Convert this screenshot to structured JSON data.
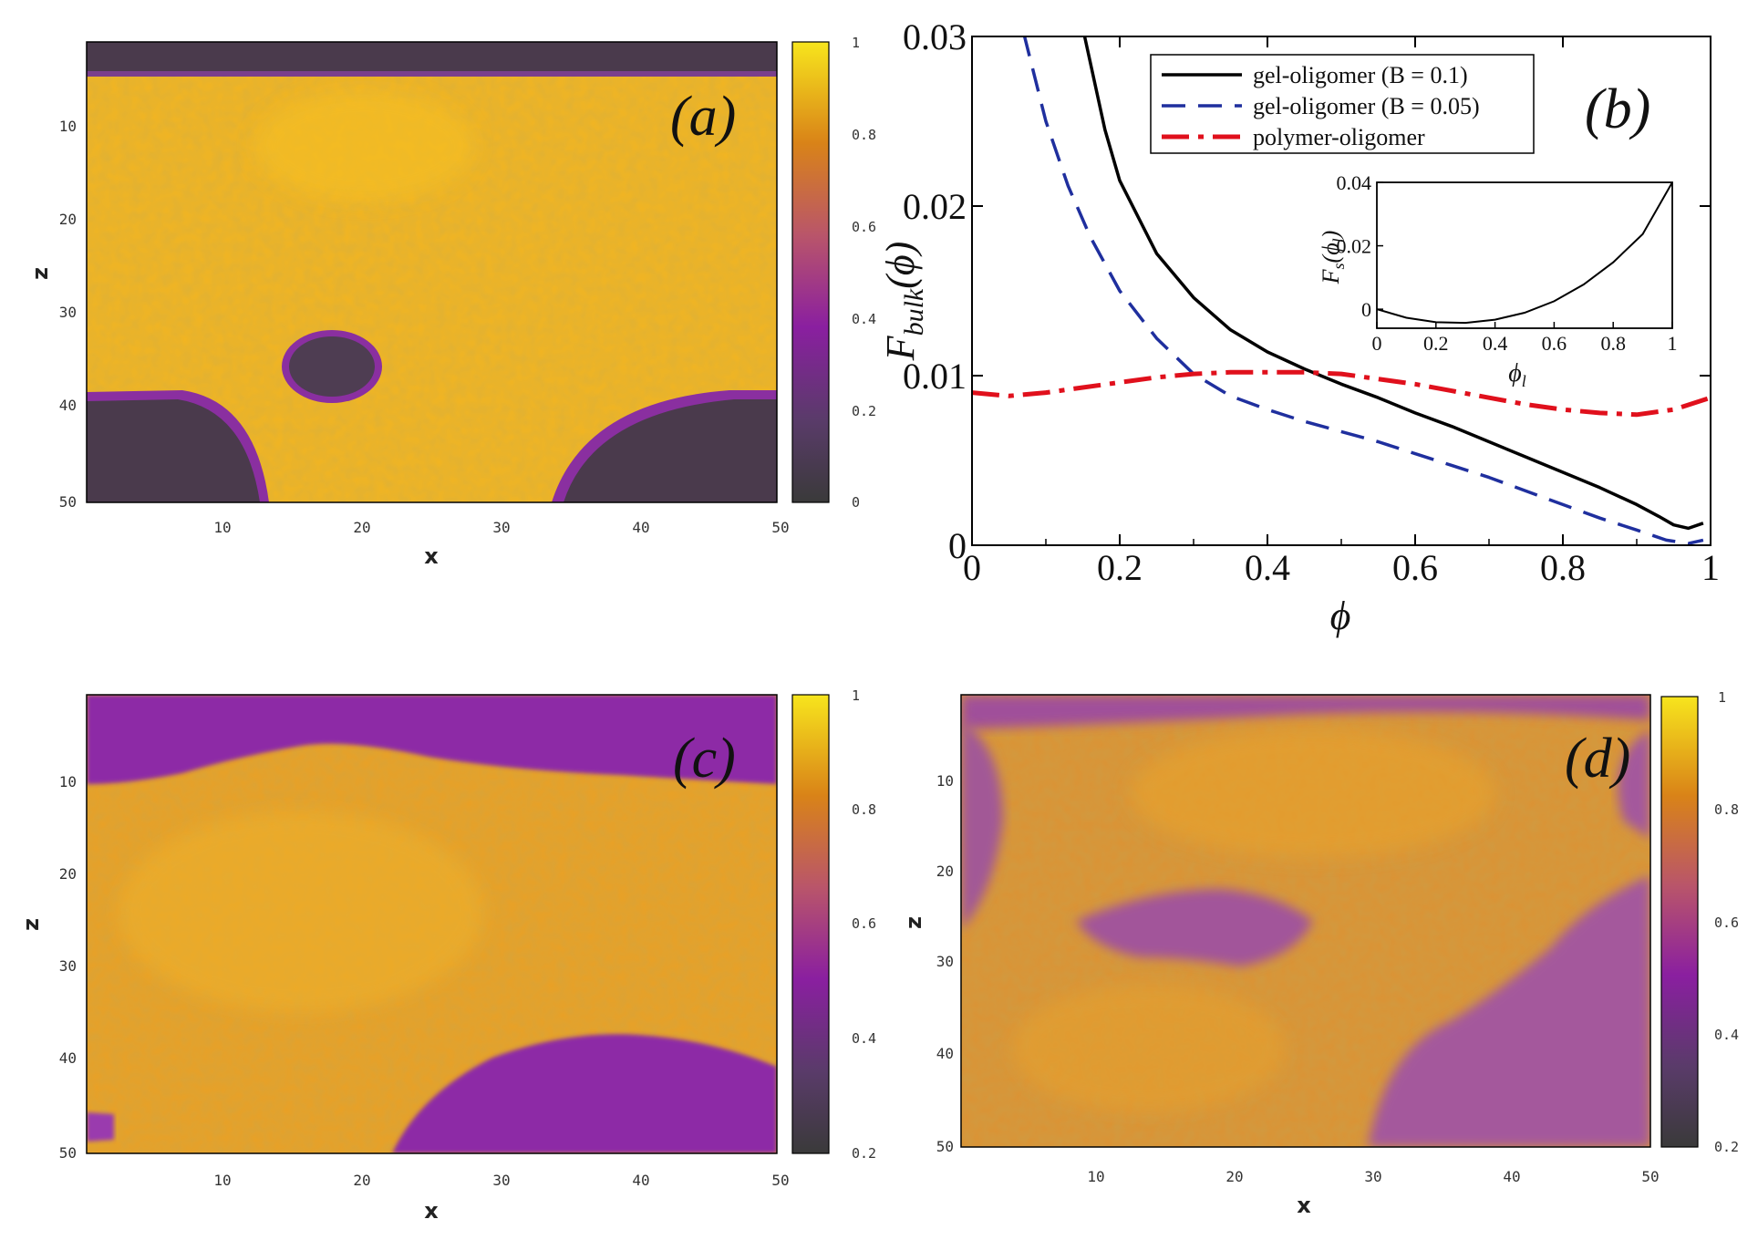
{
  "figure": {
    "panels": [
      {
        "id": "a",
        "label": "(a)",
        "xlabel": "x",
        "ylabel": "z",
        "xticks": [
          "10",
          "20",
          "30",
          "40",
          "50"
        ],
        "yticks": [
          "10",
          "20",
          "30",
          "40",
          "50"
        ],
        "colorbar": {
          "min": 0,
          "max": 1,
          "ticks": [
            "1",
            "0.8",
            "0.6",
            "0.4",
            "0.2",
            "0"
          ]
        }
      },
      {
        "id": "c",
        "label": "(c)",
        "xlabel": "x",
        "ylabel": "z",
        "xticks": [
          "10",
          "20",
          "30",
          "40",
          "50"
        ],
        "yticks": [
          "10",
          "20",
          "30",
          "40",
          "50"
        ],
        "colorbar": {
          "min": 0.2,
          "max": 1,
          "ticks": [
            "1",
            "0.8",
            "0.6",
            "0.4",
            "0.2"
          ]
        }
      },
      {
        "id": "d",
        "label": "(d)",
        "xlabel": "x",
        "ylabel": "z",
        "xticks": [
          "10",
          "20",
          "30",
          "40",
          "50"
        ],
        "yticks": [
          "10",
          "20",
          "30",
          "40",
          "50"
        ],
        "colorbar": {
          "min": 0.2,
          "max": 1,
          "ticks": [
            "1",
            "0.8",
            "0.6",
            "0.4",
            "0.2"
          ]
        }
      }
    ]
  },
  "chart_data": [
    {
      "type": "heatmap",
      "panel": "(a)",
      "xlabel": "x",
      "ylabel": "z",
      "xlim": [
        0,
        50
      ],
      "ylim": [
        50,
        0
      ],
      "colorbar_range": [
        0,
        1
      ],
      "description_values": {
        "film_fraction_typical": 0.9,
        "depleted_regions": 0.05
      }
    },
    {
      "type": "line",
      "panel": "(b)",
      "title": "",
      "xlabel": "ϕ",
      "ylabel": "F_bulk(ϕ)",
      "xlim": [
        0,
        1
      ],
      "ylim": [
        0,
        0.03
      ],
      "xticks": [
        "0",
        "0.2",
        "0.4",
        "0.6",
        "0.8",
        "1"
      ],
      "yticks": [
        "0",
        "0.01",
        "0.02",
        "0.03"
      ],
      "legend": {
        "placement": "top-right"
      },
      "series": [
        {
          "name": "gel-oligomer (B = 0.1)",
          "style": "solid",
          "color": "#000000",
          "x": [
            0.15,
            0.18,
            0.2,
            0.25,
            0.3,
            0.35,
            0.4,
            0.45,
            0.5,
            0.55,
            0.6,
            0.65,
            0.7,
            0.75,
            0.8,
            0.85,
            0.9,
            0.93,
            0.95,
            0.97,
            0.99
          ],
          "y": [
            0.0305,
            0.0245,
            0.0215,
            0.0172,
            0.0146,
            0.0127,
            0.0114,
            0.0104,
            0.0095,
            0.0087,
            0.0078,
            0.007,
            0.0061,
            0.0052,
            0.0043,
            0.0034,
            0.0024,
            0.0017,
            0.0012,
            0.001,
            0.0013
          ]
        },
        {
          "name": "gel-oligomer (B = 0.05)",
          "style": "dashed",
          "color": "#1f2f9e",
          "x": [
            0.07,
            0.1,
            0.13,
            0.16,
            0.2,
            0.25,
            0.3,
            0.35,
            0.4,
            0.45,
            0.5,
            0.55,
            0.6,
            0.65,
            0.7,
            0.75,
            0.8,
            0.85,
            0.9,
            0.94,
            0.97,
            0.99
          ],
          "y": [
            0.0302,
            0.025,
            0.0212,
            0.0182,
            0.015,
            0.0122,
            0.0101,
            0.0088,
            0.008,
            0.0073,
            0.0067,
            0.0061,
            0.0054,
            0.0047,
            0.004,
            0.0032,
            0.0024,
            0.0016,
            0.0009,
            0.0003,
            0.0001,
            0.0003
          ]
        },
        {
          "name": "polymer-oligomer",
          "style": "dashdot",
          "color": "#e0101c",
          "x": [
            0.0,
            0.05,
            0.1,
            0.15,
            0.2,
            0.25,
            0.3,
            0.35,
            0.4,
            0.45,
            0.5,
            0.55,
            0.6,
            0.65,
            0.7,
            0.75,
            0.8,
            0.85,
            0.9,
            0.95,
            1.0
          ],
          "y": [
            0.009,
            0.0088,
            0.009,
            0.0093,
            0.0096,
            0.0099,
            0.0101,
            0.0102,
            0.0102,
            0.0102,
            0.0101,
            0.0098,
            0.0095,
            0.0091,
            0.0087,
            0.0083,
            0.008,
            0.0078,
            0.0077,
            0.008,
            0.0087
          ]
        }
      ],
      "inset": {
        "xlabel": "ϕ_l",
        "ylabel": "F_s(ϕ_l)",
        "xlim": [
          0,
          1
        ],
        "ylim": [
          -0.006,
          0.04
        ],
        "xticks": [
          "0",
          "0.2",
          "0.4",
          "0.6",
          "0.8",
          "1"
        ],
        "yticks": [
          "0",
          "0.02",
          "0.04"
        ],
        "series": [
          {
            "name": "F_s",
            "x": [
              0,
              0.1,
              0.2,
              0.3,
              0.4,
              0.5,
              0.6,
              0.7,
              0.8,
              0.9,
              1.0
            ],
            "y": [
              0.0,
              -0.0027,
              -0.0041,
              -0.0043,
              -0.0033,
              -0.0011,
              0.0025,
              0.0078,
              0.0148,
              0.0237,
              0.04
            ]
          }
        ]
      }
    },
    {
      "type": "heatmap",
      "panel": "(c)",
      "xlabel": "x",
      "ylabel": "z",
      "xlim": [
        0,
        50
      ],
      "ylim": [
        50,
        0
      ],
      "colorbar_range": [
        0.2,
        1
      ]
    },
    {
      "type": "heatmap",
      "panel": "(d)",
      "xlabel": "x",
      "ylabel": "z",
      "xlim": [
        0,
        50
      ],
      "ylim": [
        50,
        0
      ],
      "colorbar_range": [
        0.2,
        1
      ]
    }
  ],
  "panel_b_text": {
    "label": "(b)",
    "ylabel_main": "F",
    "ylabel_sub": "bulk",
    "ylabel_arg": "(ϕ)",
    "xlabel": "ϕ",
    "inset_ylabel_main": "F",
    "inset_ylabel_sub": "s",
    "inset_ylabel_arg": "(ϕ",
    "inset_ylabel_sub2": "l",
    "inset_ylabel_close": ")",
    "inset_xlabel_main": "ϕ",
    "inset_xlabel_sub": "l"
  }
}
